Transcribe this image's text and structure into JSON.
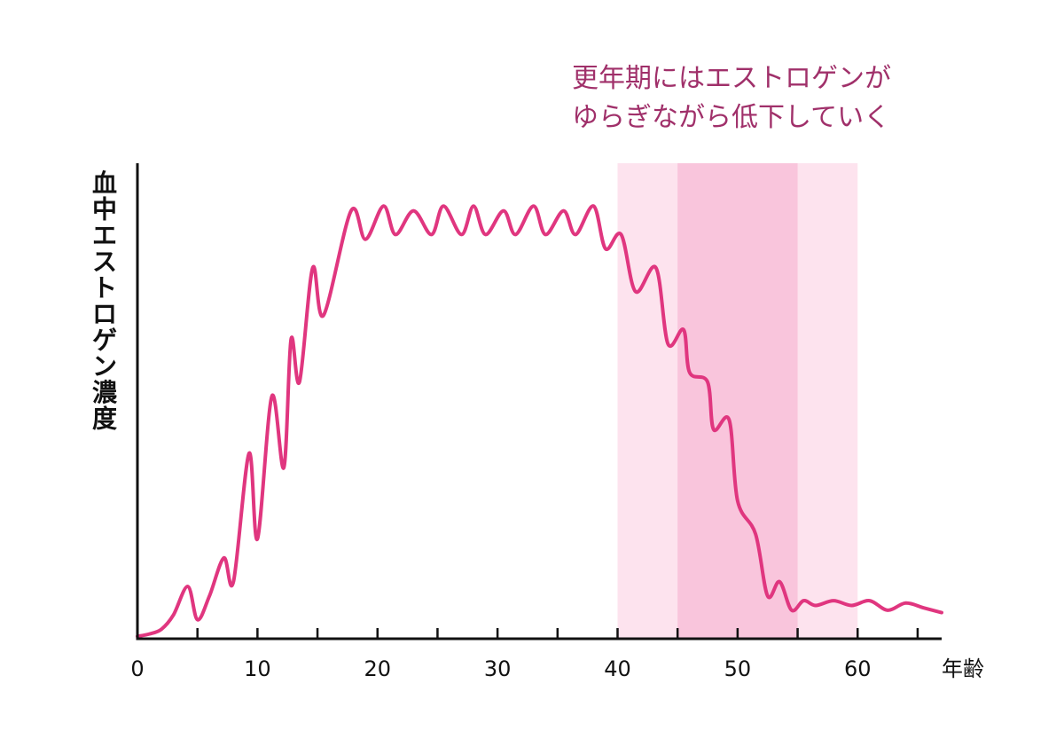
{
  "chart_data": {
    "type": "line",
    "title": "",
    "annotation_lines": [
      "更年期にはエストロゲンが",
      "ゆらぎながら低下していく"
    ],
    "ylabel": "血中エストロゲン濃度",
    "xlabel": "年齢",
    "xlim": [
      0,
      67
    ],
    "ylim": [
      0,
      100
    ],
    "x_ticks": [
      0,
      10,
      20,
      30,
      40,
      50,
      60
    ],
    "x_tick_labels": [
      "0",
      "10",
      "20",
      "30",
      "40",
      "50",
      "60"
    ],
    "x_minor_ticks": [
      5,
      15,
      25,
      35,
      45,
      55,
      65
    ],
    "grid": false,
    "shaded_regions": [
      {
        "x_start": 40,
        "x_end": 60,
        "color": "#fde3ee"
      },
      {
        "x_start": 45,
        "x_end": 55,
        "color": "#f9c5dc"
      }
    ],
    "series": [
      {
        "color": "#e0367f",
        "x": [
          0,
          1,
          2,
          3,
          4.2,
          5,
          6,
          7.2,
          8,
          9.3,
          10,
          11.2,
          12.2,
          12.8,
          13.5,
          14.6,
          15.5,
          17.8,
          19,
          20.5,
          21.5,
          23,
          24.5,
          25.5,
          27,
          28,
          29,
          30.5,
          31.5,
          33,
          34,
          35.5,
          36.5,
          38,
          39,
          40.3,
          41.5,
          43.2,
          44.2,
          45.5,
          46,
          47.5,
          48,
          49.3,
          50,
          51.5,
          52.5,
          53.5,
          54.5,
          55.5,
          56.5,
          58,
          59.5,
          61,
          62.5,
          64,
          65.5,
          67
        ],
        "y": [
          0.5,
          1,
          2,
          5,
          11,
          4,
          9,
          17,
          12,
          39,
          21,
          51,
          36,
          63,
          54,
          78,
          68,
          90,
          84,
          91,
          85,
          90,
          85,
          91,
          85,
          91,
          85,
          90,
          85,
          91,
          85,
          90,
          85,
          91,
          82,
          85,
          73,
          78,
          62,
          65,
          56,
          54,
          44,
          46,
          29,
          22,
          9,
          12,
          6,
          8,
          7,
          8,
          7,
          8,
          6,
          7.5,
          6.5,
          5.5
        ]
      }
    ]
  }
}
